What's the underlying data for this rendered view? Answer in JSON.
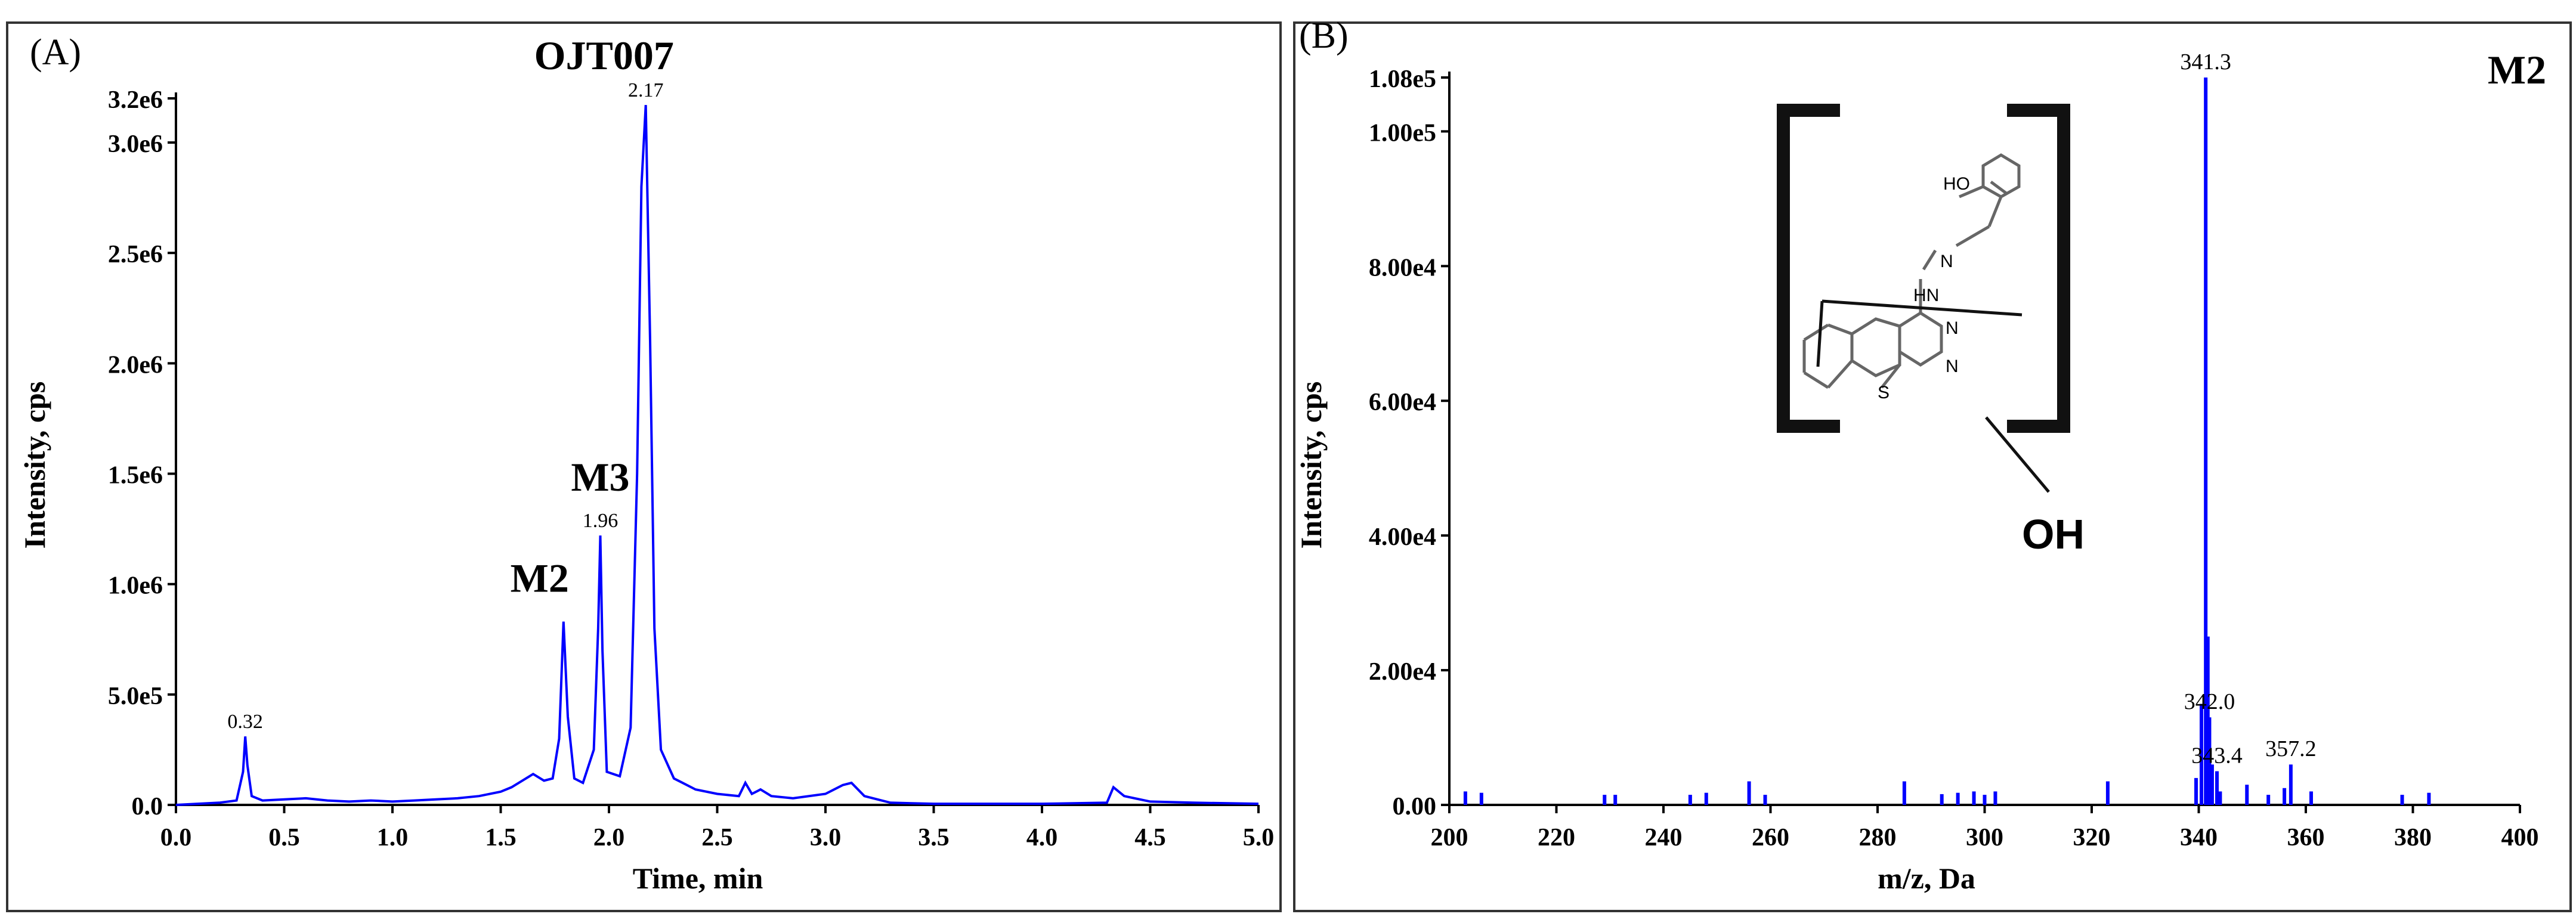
{
  "chart_data": [
    {
      "type": "line",
      "panel_label": "(A)",
      "xlabel": "Time, min",
      "ylabel": "Intensity, cps",
      "xlim": [
        0.0,
        5.0
      ],
      "ylim": [
        0,
        3200000
      ],
      "x_ticks": [
        "0.0",
        "0.5",
        "1.0",
        "1.5",
        "2.0",
        "2.5",
        "3.0",
        "3.5",
        "4.0",
        "4.5",
        "5.0"
      ],
      "x_tick_values": [
        0.0,
        0.5,
        1.0,
        1.5,
        2.0,
        2.5,
        3.0,
        3.5,
        4.0,
        4.5,
        5.0
      ],
      "y_ticks": [
        "0.0",
        "5.0e5",
        "1.0e6",
        "1.5e6",
        "2.0e6",
        "2.5e6",
        "3.0e6",
        "3.2e6"
      ],
      "y_tick_values": [
        0,
        500000,
        1000000,
        1500000,
        2000000,
        2500000,
        3000000,
        3200000
      ],
      "color": "#0000ff",
      "series": [
        {
          "points": [
            [
              0.0,
              0
            ],
            [
              0.1,
              5000
            ],
            [
              0.2,
              10000
            ],
            [
              0.28,
              20000
            ],
            [
              0.31,
              150000
            ],
            [
              0.32,
              310000
            ],
            [
              0.33,
              180000
            ],
            [
              0.35,
              40000
            ],
            [
              0.4,
              20000
            ],
            [
              0.5,
              25000
            ],
            [
              0.6,
              30000
            ],
            [
              0.7,
              20000
            ],
            [
              0.8,
              15000
            ],
            [
              0.9,
              20000
            ],
            [
              1.0,
              15000
            ],
            [
              1.1,
              20000
            ],
            [
              1.2,
              25000
            ],
            [
              1.3,
              30000
            ],
            [
              1.4,
              40000
            ],
            [
              1.5,
              60000
            ],
            [
              1.55,
              80000
            ],
            [
              1.6,
              110000
            ],
            [
              1.65,
              140000
            ],
            [
              1.7,
              110000
            ],
            [
              1.74,
              120000
            ],
            [
              1.77,
              300000
            ],
            [
              1.79,
              830000
            ],
            [
              1.81,
              400000
            ],
            [
              1.84,
              120000
            ],
            [
              1.88,
              100000
            ],
            [
              1.93,
              250000
            ],
            [
              1.95,
              800000
            ],
            [
              1.96,
              1220000
            ],
            [
              1.97,
              700000
            ],
            [
              1.99,
              150000
            ],
            [
              2.05,
              130000
            ],
            [
              2.1,
              350000
            ],
            [
              2.13,
              1500000
            ],
            [
              2.15,
              2800000
            ],
            [
              2.17,
              3170000
            ],
            [
              2.19,
              2100000
            ],
            [
              2.21,
              800000
            ],
            [
              2.24,
              250000
            ],
            [
              2.3,
              120000
            ],
            [
              2.4,
              70000
            ],
            [
              2.5,
              50000
            ],
            [
              2.6,
              40000
            ],
            [
              2.63,
              100000
            ],
            [
              2.66,
              50000
            ],
            [
              2.7,
              70000
            ],
            [
              2.75,
              40000
            ],
            [
              2.85,
              30000
            ],
            [
              3.0,
              50000
            ],
            [
              3.08,
              90000
            ],
            [
              3.12,
              100000
            ],
            [
              3.18,
              40000
            ],
            [
              3.3,
              10000
            ],
            [
              3.5,
              5000
            ],
            [
              4.0,
              5000
            ],
            [
              4.3,
              10000
            ],
            [
              4.33,
              80000
            ],
            [
              4.38,
              40000
            ],
            [
              4.5,
              15000
            ],
            [
              4.7,
              10000
            ],
            [
              5.0,
              5000
            ]
          ]
        }
      ],
      "peak_labels": [
        {
          "x": 0.32,
          "y": 310000,
          "text": "0.32"
        },
        {
          "x": 1.96,
          "y": 1220000,
          "text": "1.96"
        },
        {
          "x": 2.17,
          "y": 3170000,
          "text": "2.17"
        }
      ],
      "annotations": [
        {
          "x": 1.79,
          "y": 830000,
          "text": "M2"
        },
        {
          "x": 1.96,
          "y": 1220000,
          "text": "M3"
        },
        {
          "x": 2.17,
          "y": 3170000,
          "text": "OJT007"
        }
      ]
    },
    {
      "type": "bar",
      "panel_label": "(B)",
      "title": "M2",
      "xlabel": "m/z, Da",
      "ylabel": "Intensity, cps",
      "xlim": [
        200,
        400
      ],
      "ylim": [
        0,
        108000
      ],
      "x_ticks": [
        "200",
        "220",
        "240",
        "260",
        "280",
        "300",
        "320",
        "340",
        "360",
        "380",
        "400"
      ],
      "x_tick_values": [
        200,
        220,
        240,
        260,
        280,
        300,
        320,
        340,
        360,
        380,
        400
      ],
      "y_ticks": [
        "0.00",
        "2.00e4",
        "4.00e4",
        "6.00e4",
        "8.00e4",
        "1.00e5",
        "1.08e5"
      ],
      "y_tick_values": [
        0,
        20000,
        40000,
        60000,
        80000,
        100000,
        108000
      ],
      "color": "#0000ff",
      "peaks": [
        [
          203,
          2000
        ],
        [
          206,
          1800
        ],
        [
          229,
          1500
        ],
        [
          231,
          1500
        ],
        [
          245,
          1500
        ],
        [
          248,
          1800
        ],
        [
          256,
          3500
        ],
        [
          259,
          1500
        ],
        [
          285,
          3500
        ],
        [
          292,
          1600
        ],
        [
          295,
          1800
        ],
        [
          298,
          2000
        ],
        [
          300,
          1500
        ],
        [
          302,
          2000
        ],
        [
          323,
          3500
        ],
        [
          339.5,
          4000
        ],
        [
          340.5,
          15000
        ],
        [
          341.3,
          108000
        ],
        [
          341.7,
          25000
        ],
        [
          342.0,
          13000
        ],
        [
          342.5,
          6000
        ],
        [
          343.4,
          5000
        ],
        [
          344,
          2000
        ],
        [
          349,
          3000
        ],
        [
          353,
          1500
        ],
        [
          356,
          2500
        ],
        [
          357.2,
          6000
        ],
        [
          361,
          2000
        ],
        [
          378,
          1500
        ],
        [
          383,
          1800
        ]
      ],
      "peak_labels": [
        {
          "x": 341.3,
          "y": 108000,
          "text": "341.3"
        },
        {
          "x": 342.0,
          "y": 13000,
          "text": "342.0"
        },
        {
          "x": 343.4,
          "y": 5000,
          "text": "343.4"
        },
        {
          "x": 357.2,
          "y": 6000,
          "text": "357.2"
        }
      ],
      "structure": {
        "labels": [
          "HO",
          "N",
          "HN",
          "N",
          "N",
          "S"
        ],
        "substituent": "OH"
      }
    }
  ]
}
